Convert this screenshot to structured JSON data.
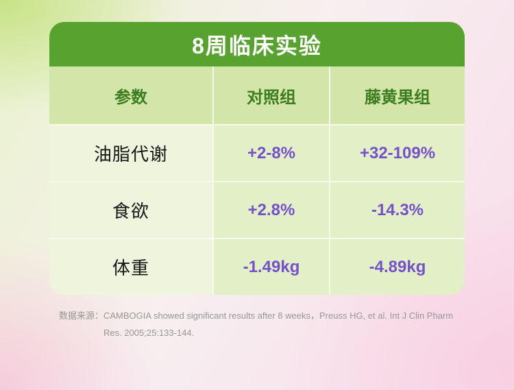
{
  "title": "8周临床实验",
  "chart_data": {
    "type": "table",
    "title": "8周临床实验",
    "columns": [
      "参数",
      "对照组",
      "藤黄果组"
    ],
    "rows": [
      [
        "油脂代谢",
        "+2-8%",
        "+32-109%"
      ],
      [
        "食欲",
        "+2.8%",
        "-14.3%"
      ],
      [
        "体重",
        "-1.49kg",
        "-4.89kg"
      ]
    ],
    "legend_position": "none",
    "grid": "table-gridlines"
  },
  "footer": {
    "line1": "数据来源：CAMBOGIA  showed significant results after 8  weeks，Preuss HG, et al. Int J Clin Pharm",
    "line2": "Res. 2005;25:133-144."
  },
  "colors": {
    "banner_green": "#58a22f",
    "header_text_green": "#3e7d1f",
    "value_purple": "#7451cb",
    "header_row_bg": "#d3e6a9",
    "param_cell_bg": "#eef5dc",
    "value_cell_bg": "#e2efc7"
  }
}
